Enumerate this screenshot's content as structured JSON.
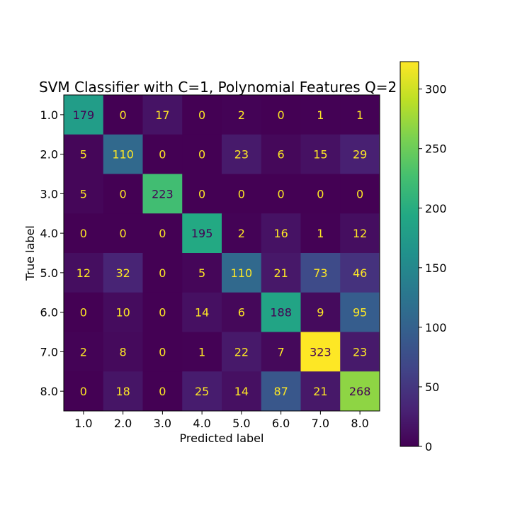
{
  "chart_data": {
    "type": "heatmap",
    "title": "SVM Classifier with C=1, Polynomial Features Q=2",
    "xlabel": "Predicted label",
    "ylabel": "True label",
    "x_categories": [
      "1.0",
      "2.0",
      "3.0",
      "4.0",
      "5.0",
      "6.0",
      "7.0",
      "8.0"
    ],
    "y_categories": [
      "1.0",
      "2.0",
      "3.0",
      "4.0",
      "5.0",
      "6.0",
      "7.0",
      "8.0"
    ],
    "values": [
      [
        179,
        0,
        17,
        0,
        2,
        0,
        1,
        1
      ],
      [
        5,
        110,
        0,
        0,
        23,
        6,
        15,
        29
      ],
      [
        5,
        0,
        223,
        0,
        0,
        0,
        0,
        0
      ],
      [
        0,
        0,
        0,
        195,
        2,
        16,
        1,
        12
      ],
      [
        12,
        32,
        0,
        5,
        110,
        21,
        73,
        46
      ],
      [
        0,
        10,
        0,
        14,
        6,
        188,
        9,
        95
      ],
      [
        2,
        8,
        0,
        1,
        22,
        7,
        323,
        23
      ],
      [
        0,
        18,
        0,
        25,
        14,
        87,
        21,
        268
      ]
    ],
    "colormap": "viridis",
    "value_range": [
      0,
      323
    ],
    "colorbar_ticks": [
      "0",
      "50",
      "100",
      "150",
      "200",
      "250",
      "300"
    ],
    "colorbar_tick_values": [
      0,
      50,
      100,
      150,
      200,
      250,
      300
    ],
    "text_color_dark": "#440154",
    "text_color_light": "#fde725"
  }
}
